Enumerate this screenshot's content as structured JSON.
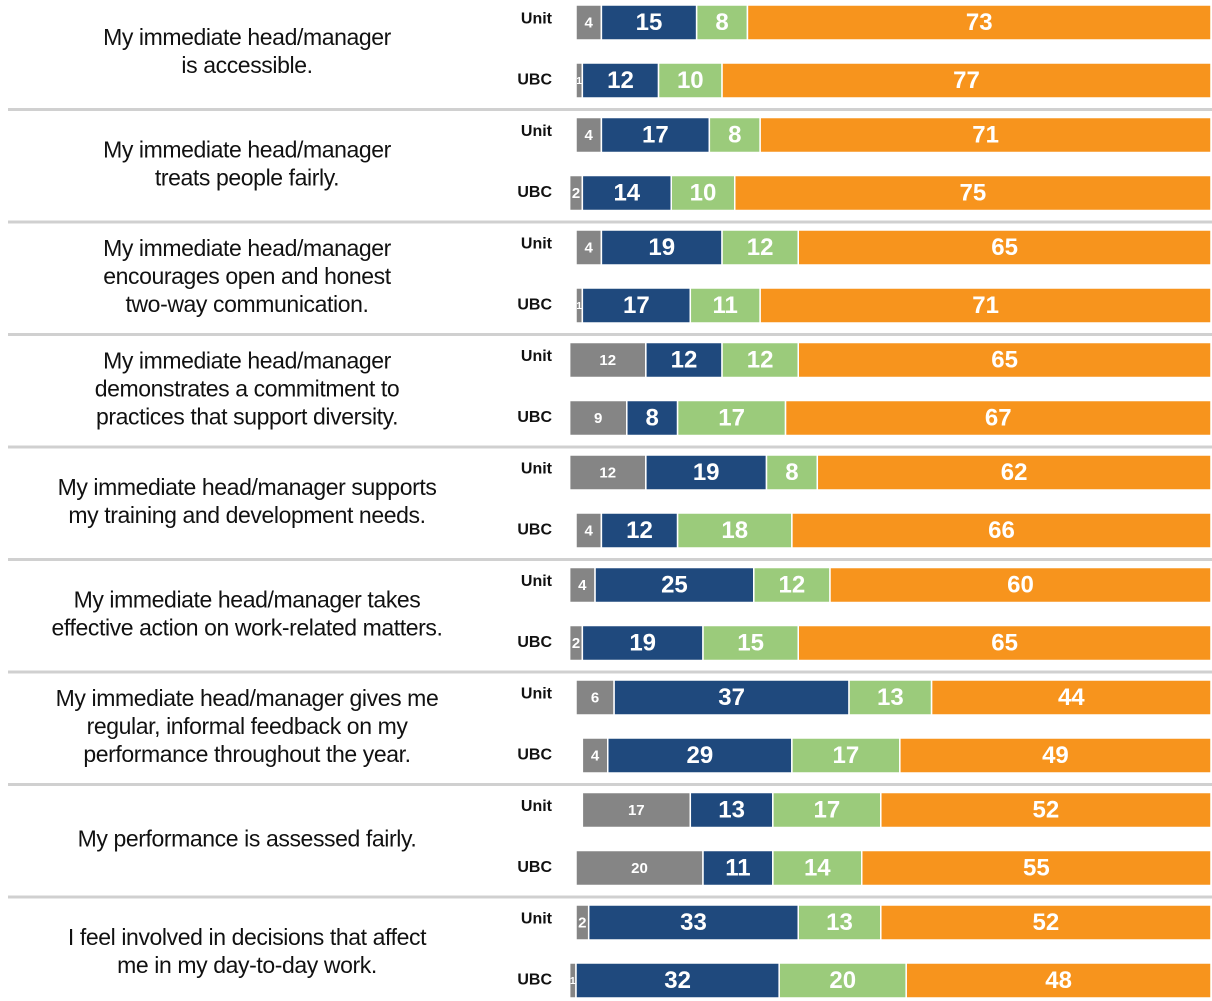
{
  "chart_data": {
    "type": "stacked_bar",
    "colors": [
      "#858585",
      "#1f497d",
      "#9bcb7b",
      "#f7941d"
    ],
    "rows": [
      {
        "question": [
          "My immediate head/manager",
          "is accessible."
        ],
        "bars": [
          {
            "label": "Unit",
            "values": [
              4,
              15,
              8,
              73
            ]
          },
          {
            "label": "UBC",
            "values": [
              1,
              12,
              10,
              77
            ]
          }
        ]
      },
      {
        "question": [
          "My immediate head/manager",
          "treats people fairly."
        ],
        "bars": [
          {
            "label": "Unit",
            "values": [
              4,
              17,
              8,
              71
            ]
          },
          {
            "label": "UBC",
            "values": [
              2,
              14,
              10,
              75
            ]
          }
        ]
      },
      {
        "question": [
          "My immediate head/manager",
          "encourages open and honest",
          "two-way communication."
        ],
        "bars": [
          {
            "label": "Unit",
            "values": [
              4,
              19,
              12,
              65
            ]
          },
          {
            "label": "UBC",
            "values": [
              1,
              17,
              11,
              71
            ]
          }
        ]
      },
      {
        "question": [
          "My immediate head/manager",
          "demonstrates a commitment to",
          "practices that support diversity."
        ],
        "bars": [
          {
            "label": "Unit",
            "values": [
              12,
              12,
              12,
              65
            ]
          },
          {
            "label": "UBC",
            "values": [
              9,
              8,
              17,
              67
            ]
          }
        ]
      },
      {
        "question": [
          "My immediate head/manager supports",
          "my training and development needs."
        ],
        "bars": [
          {
            "label": "Unit",
            "values": [
              12,
              19,
              8,
              62
            ]
          },
          {
            "label": "UBC",
            "values": [
              4,
              12,
              18,
              66
            ]
          }
        ]
      },
      {
        "question": [
          "My immediate head/manager takes",
          "effective action on work-related matters."
        ],
        "bars": [
          {
            "label": "Unit",
            "values": [
              4,
              25,
              12,
              60
            ]
          },
          {
            "label": "UBC",
            "values": [
              2,
              19,
              15,
              65
            ]
          }
        ]
      },
      {
        "question": [
          "My immediate head/manager gives me",
          "regular, informal feedback on my",
          "performance throughout the year."
        ],
        "bars": [
          {
            "label": "Unit",
            "values": [
              6,
              37,
              13,
              44
            ]
          },
          {
            "label": "UBC",
            "values": [
              4,
              29,
              17,
              49
            ]
          }
        ]
      },
      {
        "question": [
          "My performance is assessed fairly."
        ],
        "bars": [
          {
            "label": "Unit",
            "values": [
              17,
              13,
              17,
              52
            ]
          },
          {
            "label": "UBC",
            "values": [
              20,
              11,
              14,
              55
            ]
          }
        ]
      },
      {
        "question": [
          "I feel involved in decisions that affect",
          "me in my day-to-day work."
        ],
        "bars": [
          {
            "label": "Unit",
            "values": [
              2,
              33,
              13,
              52
            ]
          },
          {
            "label": "UBC",
            "values": [
              1,
              32,
              20,
              48
            ]
          }
        ]
      }
    ]
  }
}
